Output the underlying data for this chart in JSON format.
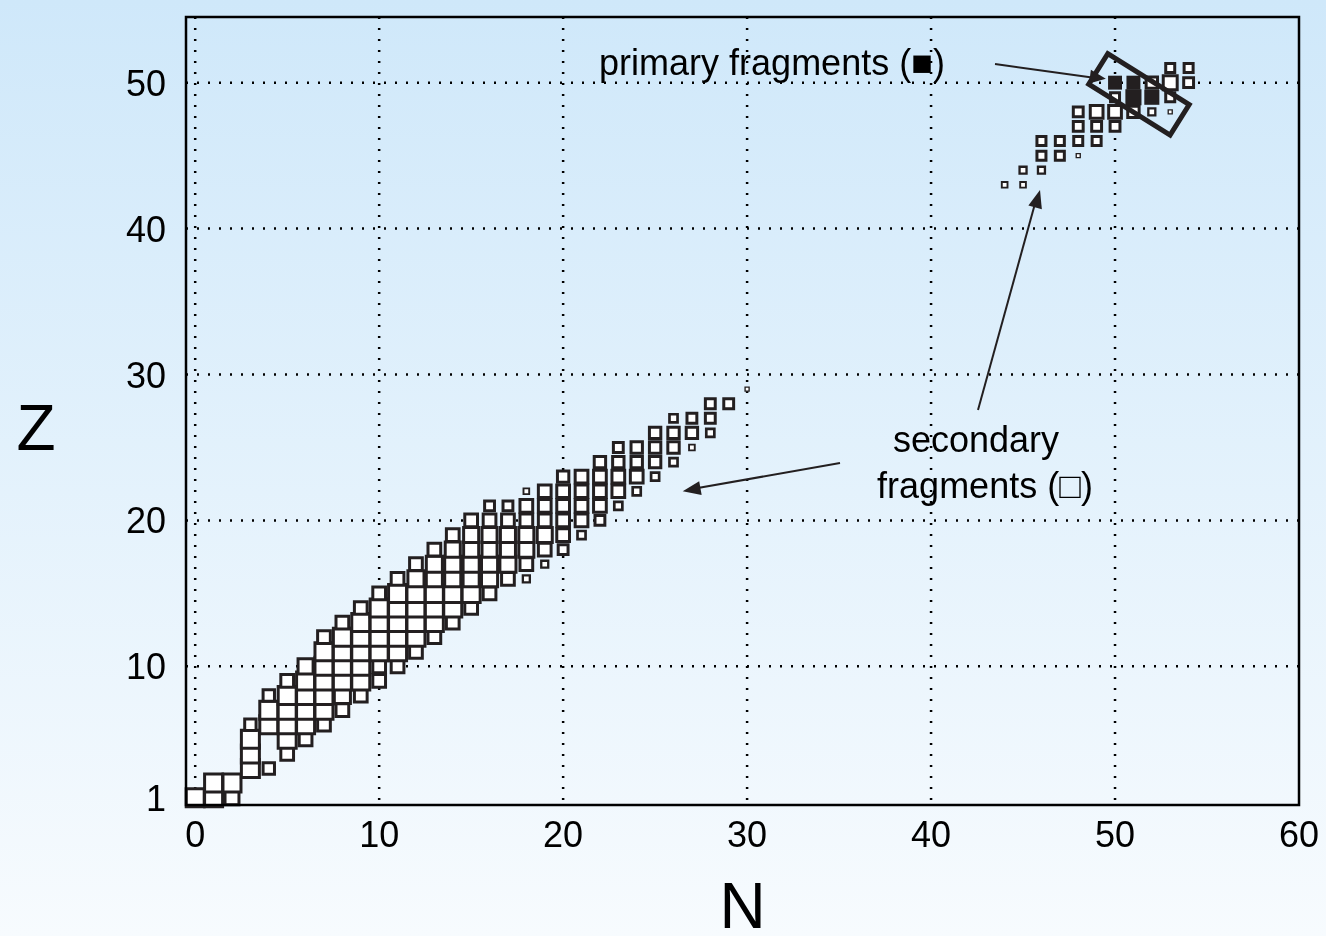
{
  "chart_data": {
    "type": "bubble",
    "xlabel": "N",
    "ylabel": "Z",
    "xlim": [
      -0.5,
      60
    ],
    "ylim": [
      0.5,
      54.5
    ],
    "xticks": [
      0,
      10,
      20,
      30,
      40,
      50,
      60
    ],
    "yticks": [
      1,
      10,
      20,
      30,
      40,
      50
    ],
    "grid": true,
    "marker": "square",
    "annotations": [
      "primary fragments (■)",
      "secondary fragments (□)"
    ],
    "series": [
      {
        "color": "#231f20",
        "x": [
          0,
          1,
          2,
          1,
          2,
          3,
          4,
          3,
          5,
          3,
          5,
          6,
          3,
          4,
          5,
          6,
          7,
          4,
          5,
          6,
          7,
          8,
          4,
          5,
          6,
          7,
          8,
          9,
          5,
          6,
          7,
          8,
          9,
          10,
          6,
          7,
          8,
          9,
          10,
          11,
          7,
          8,
          9,
          10,
          11,
          12,
          7,
          8,
          9,
          10,
          11,
          12,
          13,
          8,
          9,
          10,
          11,
          12,
          13,
          14,
          9,
          10,
          11,
          12,
          13,
          14,
          15,
          10,
          11,
          12,
          13,
          14,
          15,
          16,
          11,
          12,
          13,
          14,
          15,
          16,
          17,
          18,
          12,
          13,
          14,
          15,
          16,
          17,
          18,
          19,
          13,
          14,
          15,
          16,
          17,
          18,
          19,
          20,
          14,
          15,
          16,
          17,
          18,
          19,
          20,
          21,
          15,
          16,
          17,
          18,
          19,
          20,
          21,
          22,
          16,
          17,
          18,
          19,
          20,
          21,
          22,
          23,
          18,
          19,
          20,
          21,
          22,
          23,
          24,
          20,
          21,
          22,
          23,
          24,
          25,
          22,
          23,
          24,
          25,
          26,
          23,
          24,
          25,
          26,
          27,
          25,
          26,
          27,
          28,
          26,
          27,
          28,
          28,
          29,
          30,
          44,
          45,
          45,
          46,
          46,
          47,
          48,
          46,
          47,
          48,
          49,
          48,
          49,
          50,
          48,
          49,
          50,
          51,
          52,
          53,
          50,
          53,
          52,
          53,
          54,
          53,
          54
        ],
        "values": [
          1,
          1,
          1,
          2,
          2,
          3,
          3,
          4,
          4,
          5,
          5,
          5,
          6,
          6,
          6,
          6,
          6,
          7,
          7,
          7,
          7,
          7,
          8,
          8,
          8,
          8,
          8,
          8,
          9,
          9,
          9,
          9,
          9,
          9,
          10,
          10,
          10,
          10,
          10,
          10,
          11,
          11,
          11,
          11,
          11,
          11,
          12,
          12,
          12,
          12,
          12,
          12,
          12,
          13,
          13,
          13,
          13,
          13,
          13,
          13,
          14,
          14,
          14,
          14,
          14,
          14,
          14,
          15,
          15,
          15,
          15,
          15,
          15,
          15,
          16,
          16,
          16,
          16,
          16,
          16,
          16,
          16,
          17,
          17,
          17,
          17,
          17,
          17,
          17,
          17,
          18,
          18,
          18,
          18,
          18,
          18,
          18,
          18,
          19,
          19,
          19,
          19,
          19,
          19,
          19,
          19,
          20,
          20,
          20,
          20,
          20,
          20,
          20,
          20,
          21,
          21,
          21,
          21,
          21,
          21,
          21,
          21,
          22,
          22,
          22,
          22,
          22,
          22,
          22,
          23,
          23,
          23,
          23,
          23,
          23,
          24,
          24,
          24,
          24,
          24,
          25,
          25,
          25,
          25,
          25,
          26,
          26,
          26,
          26,
          27,
          27,
          27,
          28,
          28,
          29,
          43,
          43,
          44,
          44,
          45,
          45,
          45,
          46,
          46,
          46,
          46,
          47,
          47,
          47,
          48,
          48,
          48,
          48,
          48,
          48,
          49,
          49,
          50,
          50,
          50,
          51,
          51
        ],
        "sizes": [
          1,
          1,
          0.6,
          1,
          1,
          1,
          0.4,
          1,
          0.5,
          1,
          1,
          0.5,
          0.4,
          1,
          1,
          1,
          0.5,
          1,
          1,
          1,
          1,
          0.5,
          0.4,
          1,
          1,
          1,
          0.8,
          0.5,
          0.5,
          1,
          1,
          1,
          1,
          0.5,
          0.7,
          1,
          1,
          1,
          0.5,
          0.5,
          1,
          1,
          1,
          1,
          1,
          0.5,
          0.5,
          1,
          1,
          1,
          1,
          1,
          0.5,
          0.5,
          1,
          1,
          1,
          1,
          1,
          0.5,
          0.5,
          1,
          1,
          1,
          1,
          1,
          0.5,
          0.5,
          1,
          1,
          1,
          1,
          1,
          0.5,
          0.5,
          0.8,
          0.8,
          0.8,
          0.8,
          0.8,
          0.5,
          0.15,
          0.5,
          0.8,
          0.8,
          0.8,
          0.8,
          0.8,
          0.5,
          0.15,
          0.5,
          0.7,
          0.7,
          0.7,
          0.7,
          0.7,
          0.5,
          0.3,
          0.5,
          0.7,
          0.7,
          0.7,
          0.7,
          0.7,
          0.5,
          0.2,
          0.5,
          0.5,
          0.5,
          0.5,
          0.5,
          0.5,
          0.5,
          0.3,
          0.3,
          0.3,
          0.5,
          0.5,
          0.5,
          0.5,
          0.5,
          0.2,
          0.1,
          0.5,
          0.5,
          0.5,
          0.5,
          0.5,
          0.2,
          0.4,
          0.5,
          0.5,
          0.5,
          0.5,
          0.2,
          0.4,
          0.4,
          0.4,
          0.4,
          0.2,
          0.3,
          0.4,
          0.4,
          0.4,
          0.1,
          0.4,
          0.4,
          0.4,
          0.2,
          0.2,
          0.3,
          0.3,
          0.3,
          0.3,
          0.05,
          0.1,
          0.1,
          0.15,
          0.15,
          0.25,
          0.25,
          0.05,
          0.25,
          0.25,
          0.25,
          0.25,
          0.3,
          0.3,
          0.3,
          0.3,
          0.5,
          0.5,
          0.4,
          0.15,
          0.05,
          0.25,
          0.25,
          0.4,
          0.6,
          0.3,
          0.25,
          0.25
        ]
      },
      {
        "color": "#231f20",
        "x": [
          50,
          51,
          51,
          52
        ],
        "values": [
          50,
          50,
          49,
          49
        ],
        "sizes": [
          0.6,
          0.6,
          0.8,
          0.7
        ]
      }
    ]
  }
}
